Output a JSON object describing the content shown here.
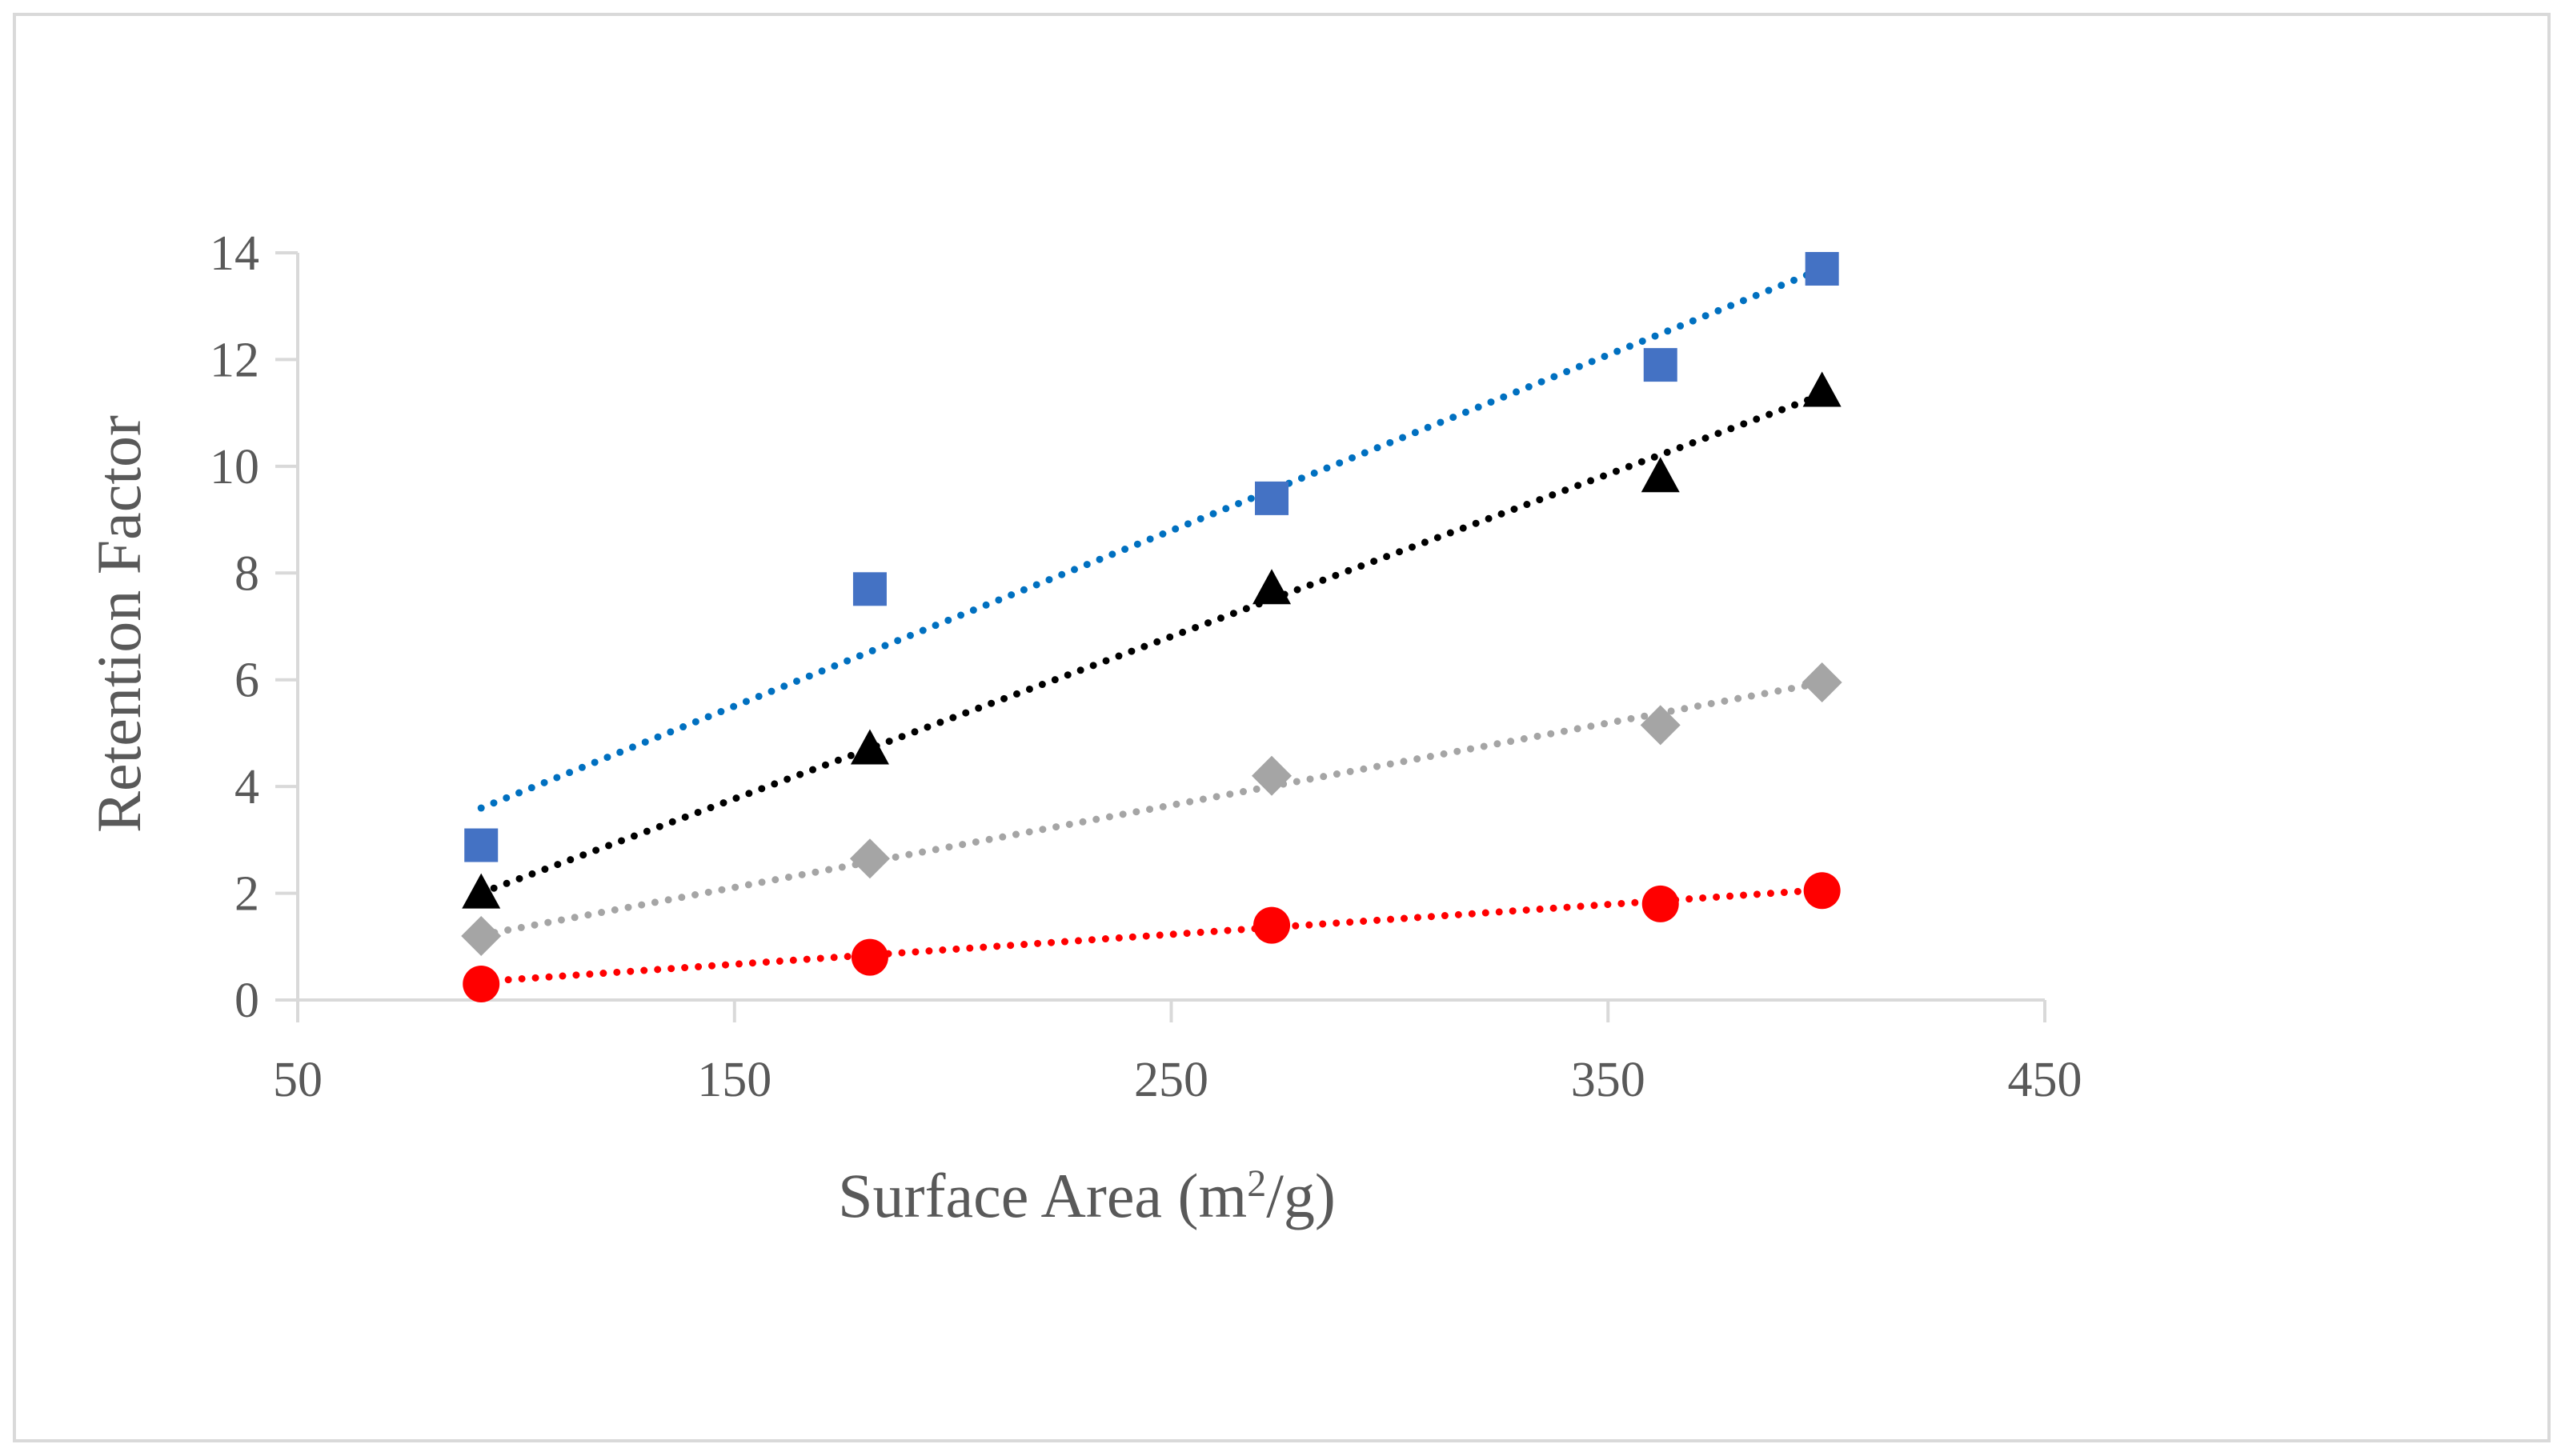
{
  "chart_data": {
    "type": "scatter",
    "title": "",
    "xlabel": "Surface Area (m",
    "xlabel_sup": "2",
    "xlabel_tail": "/g)",
    "ylabel": "Retention Factor",
    "xlim": [
      50,
      450
    ],
    "ylim": [
      0,
      14
    ],
    "xticks": [
      50,
      150,
      250,
      350,
      450
    ],
    "yticks": [
      0,
      2,
      4,
      6,
      8,
      10,
      12,
      14
    ],
    "grid": false,
    "legend": "none",
    "series": [
      {
        "name": "square series",
        "marker": "square",
        "marker_color": "#4472c4",
        "trend_color": "#0070c0",
        "x": [
          92,
          181,
          273,
          362,
          399
        ],
        "y": [
          2.9,
          7.7,
          9.4,
          11.9,
          13.7
        ],
        "trend": {
          "slope": 0.0329,
          "intercept": 0.57
        }
      },
      {
        "name": "triangle series",
        "marker": "triangle",
        "marker_color": "#000000",
        "trend_color": "#000000",
        "x": [
          92,
          181,
          273,
          362,
          399
        ],
        "y": [
          2.0,
          4.7,
          7.7,
          9.8,
          11.4
        ],
        "trend": {
          "slope": 0.0304,
          "intercept": -0.79
        }
      },
      {
        "name": "diamond series",
        "marker": "diamond",
        "marker_color": "#a5a5a5",
        "trend_color": "#a5a5a5",
        "x": [
          92,
          181,
          273,
          362,
          399
        ],
        "y": [
          1.2,
          2.65,
          4.2,
          5.15,
          5.95
        ],
        "trend": {
          "slope": 0.0154,
          "intercept": -0.2
        }
      },
      {
        "name": "circle series",
        "marker": "circle",
        "marker_color": "#ff0000",
        "trend_color": "#ff0000",
        "x": [
          92,
          181,
          273,
          362,
          399
        ],
        "y": [
          0.3,
          0.8,
          1.4,
          1.8,
          2.05
        ],
        "trend": {
          "slope": 0.0056,
          "intercept": -0.17
        }
      }
    ]
  }
}
